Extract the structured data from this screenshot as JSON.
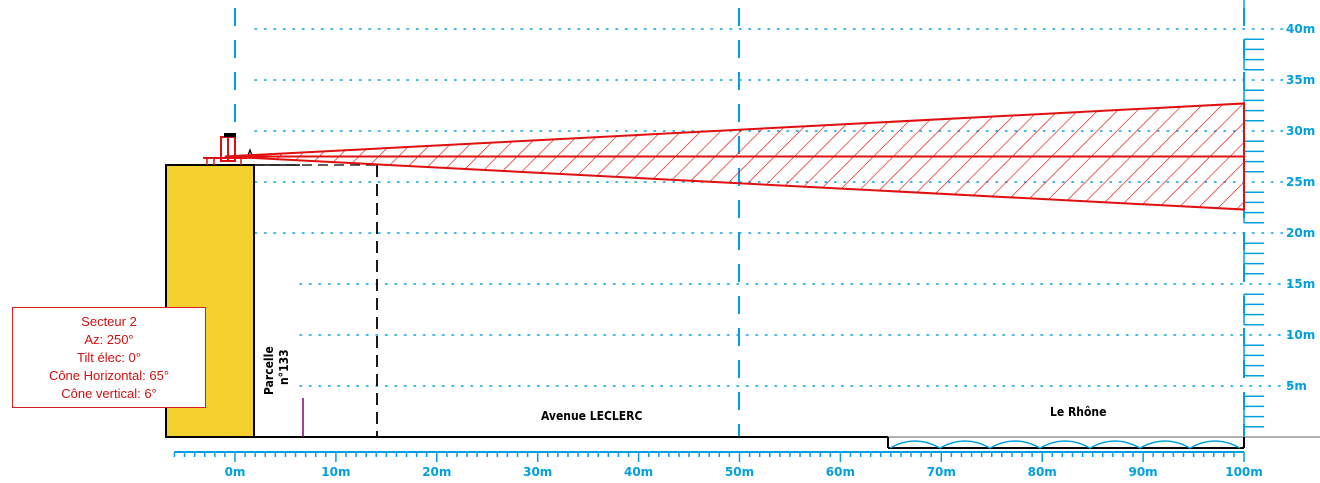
{
  "sector": {
    "title": "Secteur 2",
    "azimuth": "Az: 250°",
    "tilt": "Tilt élec: 0°",
    "horizontal_cone": "Cône Horizontal: 65°",
    "vertical_cone": "Cône vertical: 6°"
  },
  "labels": {
    "parcel_line1": "Parcelle",
    "parcel_line2": "n°133",
    "avenue": "Avenue LECLERC",
    "river": "Le Rhône"
  },
  "x_axis": {
    "ticks": [
      {
        "value": 0,
        "label": "0m"
      },
      {
        "value": 10,
        "label": "10m"
      },
      {
        "value": 20,
        "label": "20m"
      },
      {
        "value": 30,
        "label": "30m"
      },
      {
        "value": 40,
        "label": "40m"
      },
      {
        "value": 50,
        "label": "50m"
      },
      {
        "value": 60,
        "label": "60m"
      },
      {
        "value": 70,
        "label": "70m"
      },
      {
        "value": 80,
        "label": "80m"
      },
      {
        "value": 90,
        "label": "90m"
      },
      {
        "value": 100,
        "label": "100m"
      }
    ]
  },
  "y_axis": {
    "ticks": [
      {
        "value": 5,
        "label": "5m"
      },
      {
        "value": 10,
        "label": "10m"
      },
      {
        "value": 15,
        "label": "15m"
      },
      {
        "value": 20,
        "label": "20m"
      },
      {
        "value": 25,
        "label": "25m"
      },
      {
        "value": 30,
        "label": "30m"
      },
      {
        "value": 35,
        "label": "35m"
      },
      {
        "value": 40,
        "label": "40m"
      }
    ]
  },
  "cone": {
    "origin": {
      "x": -1,
      "y": 27.5
    },
    "end_x": 100,
    "end_center_y": 27.5,
    "end_top_y": 32.7,
    "end_bottom_y": 22.3
  },
  "colors": {
    "axis": "#00a0e0",
    "cone": "#e01010",
    "building": "#f5d130",
    "info_border": "#e02020"
  }
}
